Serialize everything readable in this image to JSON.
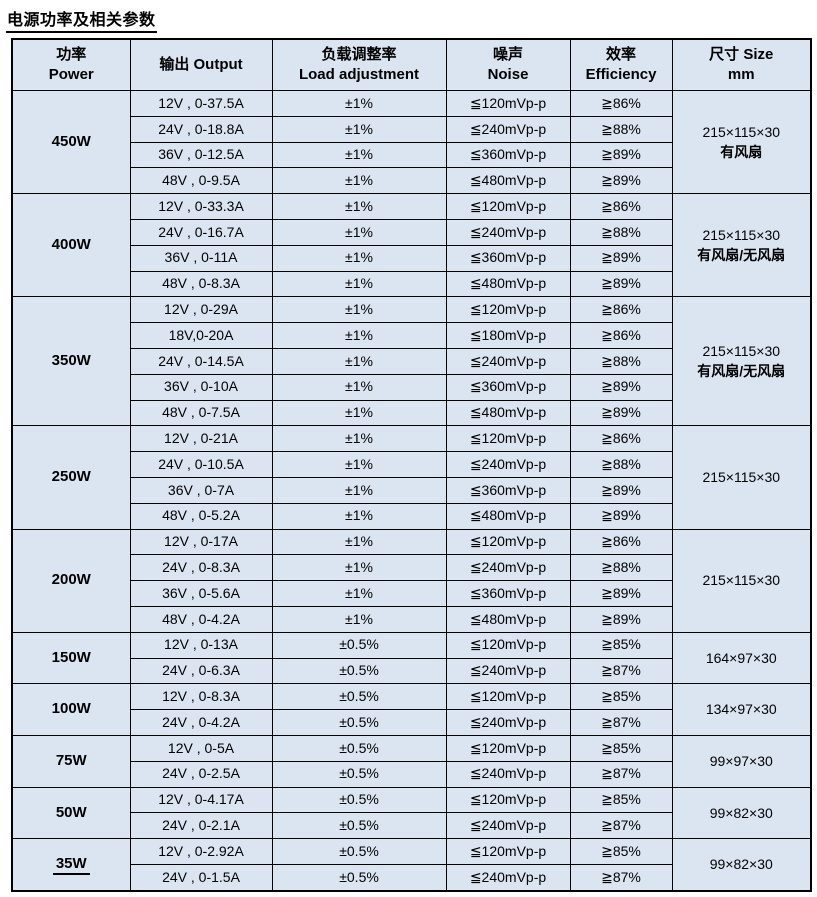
{
  "title": "电源功率及相关参数",
  "accent_colors": {
    "cell_background": "#dbe5f1",
    "border": "#000000",
    "text": "#000000"
  },
  "table": {
    "header": [
      {
        "key": "power",
        "lines": [
          "功率",
          "Power"
        ]
      },
      {
        "key": "output",
        "lines": [
          "输出 Output"
        ]
      },
      {
        "key": "load-adjustment",
        "lines": [
          "负载调整率",
          "Load adjustment"
        ]
      },
      {
        "key": "noise",
        "lines": [
          "噪声",
          "Noise"
        ]
      },
      {
        "key": "efficiency",
        "lines": [
          "效率",
          "Efficiency"
        ]
      },
      {
        "key": "size",
        "lines": [
          "尺寸 Size",
          "mm"
        ]
      }
    ],
    "groups": [
      {
        "power": "450W",
        "power_underline": false,
        "size_lines": [
          {
            "text": "215×115×30",
            "bold": false
          },
          {
            "text": "有风扇",
            "bold": true
          }
        ],
        "rows": [
          {
            "output": "12V , 0-37.5A",
            "load_adjustment": "±1%",
            "noise": "≦120mVp-p",
            "efficiency": "≧86%"
          },
          {
            "output": "24V , 0-18.8A",
            "load_adjustment": "±1%",
            "noise": "≦240mVp-p",
            "efficiency": "≧88%"
          },
          {
            "output": "36V , 0-12.5A",
            "load_adjustment": "±1%",
            "noise": "≦360mVp-p",
            "efficiency": "≧89%"
          },
          {
            "output": "48V , 0-9.5A",
            "load_adjustment": "±1%",
            "noise": "≦480mVp-p",
            "efficiency": "≧89%"
          }
        ]
      },
      {
        "power": "400W",
        "power_underline": false,
        "size_lines": [
          {
            "text": "215×115×30",
            "bold": false
          },
          {
            "text": "有风扇/无风扇",
            "bold": true
          }
        ],
        "rows": [
          {
            "output": "12V , 0-33.3A",
            "load_adjustment": "±1%",
            "noise": "≦120mVp-p",
            "efficiency": "≧86%"
          },
          {
            "output": "24V , 0-16.7A",
            "load_adjustment": "±1%",
            "noise": "≦240mVp-p",
            "efficiency": "≧88%"
          },
          {
            "output": "36V , 0-11A",
            "load_adjustment": "±1%",
            "noise": "≦360mVp-p",
            "efficiency": "≧89%"
          },
          {
            "output": "48V , 0-8.3A",
            "load_adjustment": "±1%",
            "noise": "≦480mVp-p",
            "efficiency": "≧89%"
          }
        ]
      },
      {
        "power": "350W",
        "power_underline": false,
        "size_lines": [
          {
            "text": "215×115×30",
            "bold": false
          },
          {
            "text": "有风扇/无风扇",
            "bold": true
          }
        ],
        "rows": [
          {
            "output": "12V , 0-29A",
            "load_adjustment": "±1%",
            "noise": "≦120mVp-p",
            "efficiency": "≧86%"
          },
          {
            "output": "18V,0-20A",
            "load_adjustment": "±1%",
            "noise": "≦180mVp-p",
            "efficiency": "≧86%"
          },
          {
            "output": "24V , 0-14.5A",
            "load_adjustment": "±1%",
            "noise": "≦240mVp-p",
            "efficiency": "≧88%"
          },
          {
            "output": "36V , 0-10A",
            "load_adjustment": "±1%",
            "noise": "≦360mVp-p",
            "efficiency": "≧89%"
          },
          {
            "output": "48V , 0-7.5A",
            "load_adjustment": "±1%",
            "noise": "≦480mVp-p",
            "efficiency": "≧89%"
          }
        ]
      },
      {
        "power": "250W",
        "power_underline": false,
        "size_lines": [
          {
            "text": "215×115×30",
            "bold": false
          }
        ],
        "rows": [
          {
            "output": "12V , 0-21A",
            "load_adjustment": "±1%",
            "noise": "≦120mVp-p",
            "efficiency": "≧86%"
          },
          {
            "output": "24V , 0-10.5A",
            "load_adjustment": "±1%",
            "noise": "≦240mVp-p",
            "efficiency": "≧88%"
          },
          {
            "output": "36V , 0-7A",
            "load_adjustment": "±1%",
            "noise": "≦360mVp-p",
            "efficiency": "≧89%"
          },
          {
            "output": "48V , 0-5.2A",
            "load_adjustment": "±1%",
            "noise": "≦480mVp-p",
            "efficiency": "≧89%"
          }
        ]
      },
      {
        "power": "200W",
        "power_underline": false,
        "size_lines": [
          {
            "text": "215×115×30",
            "bold": false
          }
        ],
        "rows": [
          {
            "output": "12V , 0-17A",
            "load_adjustment": "±1%",
            "noise": "≦120mVp-p",
            "efficiency": "≧86%"
          },
          {
            "output": "24V , 0-8.3A",
            "load_adjustment": "±1%",
            "noise": "≦240mVp-p",
            "efficiency": "≧88%"
          },
          {
            "output": "36V , 0-5.6A",
            "load_adjustment": "±1%",
            "noise": "≦360mVp-p",
            "efficiency": "≧89%"
          },
          {
            "output": "48V , 0-4.2A",
            "load_adjustment": "±1%",
            "noise": "≦480mVp-p",
            "efficiency": "≧89%"
          }
        ]
      },
      {
        "power": "150W",
        "power_underline": false,
        "size_lines": [
          {
            "text": "164×97×30",
            "bold": false
          }
        ],
        "rows": [
          {
            "output": "12V , 0-13A",
            "load_adjustment": "±0.5%",
            "noise": "≦120mVp-p",
            "efficiency": "≧85%"
          },
          {
            "output": "24V , 0-6.3A",
            "load_adjustment": "±0.5%",
            "noise": "≦240mVp-p",
            "efficiency": "≧87%"
          }
        ]
      },
      {
        "power": "100W",
        "power_underline": false,
        "size_lines": [
          {
            "text": "134×97×30",
            "bold": false
          }
        ],
        "rows": [
          {
            "output": "12V , 0-8.3A",
            "load_adjustment": "±0.5%",
            "noise": "≦120mVp-p",
            "efficiency": "≧85%"
          },
          {
            "output": "24V , 0-4.2A",
            "load_adjustment": "±0.5%",
            "noise": "≦240mVp-p",
            "efficiency": "≧87%"
          }
        ]
      },
      {
        "power": "75W",
        "power_underline": false,
        "size_lines": [
          {
            "text": "99×97×30",
            "bold": false
          }
        ],
        "rows": [
          {
            "output": "12V , 0-5A",
            "load_adjustment": "±0.5%",
            "noise": "≦120mVp-p",
            "efficiency": "≧85%"
          },
          {
            "output": "24V , 0-2.5A",
            "load_adjustment": "±0.5%",
            "noise": "≦240mVp-p",
            "efficiency": "≧87%"
          }
        ]
      },
      {
        "power": "50W",
        "power_underline": false,
        "size_lines": [
          {
            "text": "99×82×30",
            "bold": false
          }
        ],
        "rows": [
          {
            "output": "12V , 0-4.17A",
            "load_adjustment": "±0.5%",
            "noise": "≦120mVp-p",
            "efficiency": "≧85%"
          },
          {
            "output": "24V , 0-2.1A",
            "load_adjustment": "±0.5%",
            "noise": "≦240mVp-p",
            "efficiency": "≧87%"
          }
        ]
      },
      {
        "power": "35W",
        "power_underline": true,
        "size_lines": [
          {
            "text": "99×82×30",
            "bold": false
          }
        ],
        "rows": [
          {
            "output": "12V , 0-2.92A",
            "load_adjustment": "±0.5%",
            "noise": "≦120mVp-p",
            "efficiency": "≧85%"
          },
          {
            "output": "24V , 0-1.5A",
            "load_adjustment": "±0.5%",
            "noise": "≦240mVp-p",
            "efficiency": "≧87%"
          }
        ]
      }
    ]
  }
}
